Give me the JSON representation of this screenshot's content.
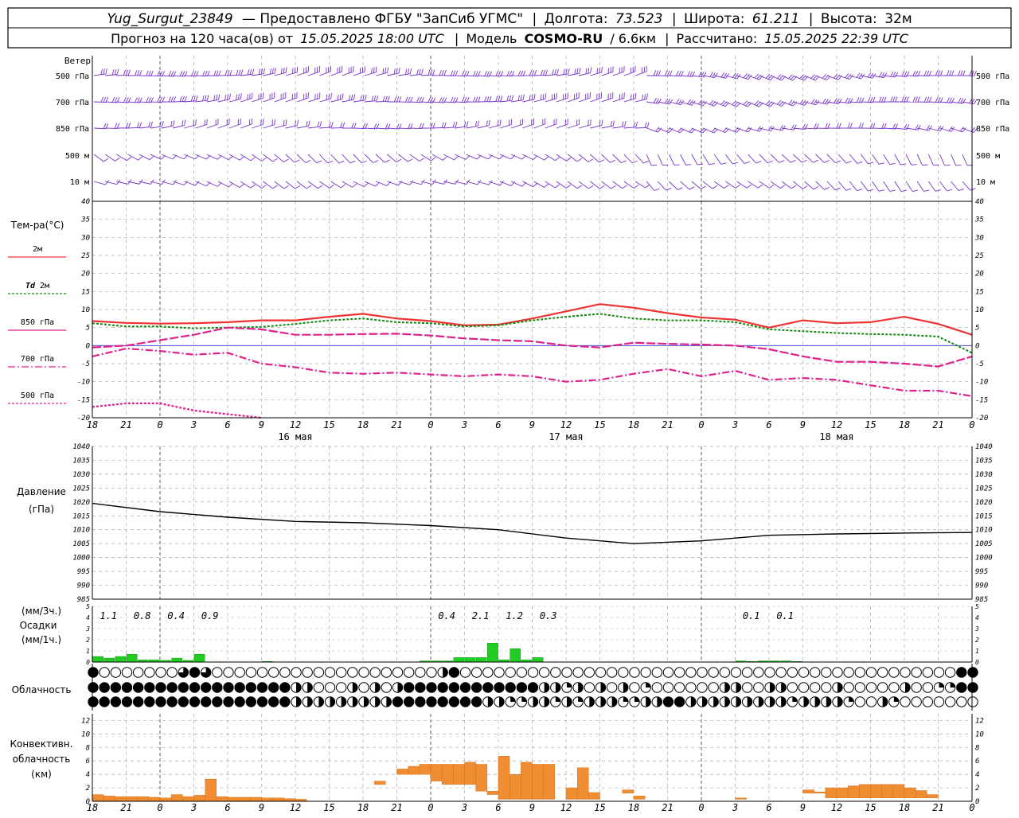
{
  "header": {
    "station": "Yug_Surgut_23849",
    "provider": "— Предоставлено ФГБУ \"ЗапСиб УГМС\"",
    "lon_label": "Долгота:",
    "lon_value": "73.523",
    "lat_label": "Широта:",
    "lat_value": "61.211",
    "alt_label": "Высота:",
    "alt_value": "32м",
    "forecast_label": "Прогноз на 120 часа(ов) от",
    "forecast_start": "15.05.2025 18:00 UTC",
    "model_label": "Модель",
    "model_name": "COSMO-RU",
    "model_res": "/ 6.6км",
    "calc_label": "Рассчитано:",
    "calc_time": "15.05.2025 22:39 UTC"
  },
  "panels": {
    "wind": {
      "title": "Ветер",
      "levels": [
        "500 гПа",
        "700 гПа",
        "850 гПа",
        "500 м",
        "10  м"
      ]
    },
    "temp": {
      "title": "Тем-ра(°C)",
      "legend": [
        "2м",
        "Td  2м",
        "850 гПа",
        "700 гПа",
        "500 гПа"
      ]
    },
    "pressure": {
      "title": "Давление",
      "units": "(гПа)"
    },
    "precip": {
      "units3": "(мм/3ч.)",
      "title": "Осадки",
      "units1": "(мм/1ч.)"
    },
    "clouds": {
      "title": "Облачность"
    },
    "conv": {
      "title1": "Конвективн.",
      "title2": "облачность",
      "units": "(км)"
    }
  },
  "time_axis": {
    "hour_labels": [
      "18",
      "21",
      "0",
      "3",
      "6",
      "9",
      "12",
      "15",
      "18",
      "21",
      "0",
      "3",
      "6",
      "9",
      "12",
      "15",
      "18",
      "21",
      "0",
      "3",
      "6",
      "9",
      "12",
      "15",
      "18",
      "21",
      "0"
    ],
    "day_labels": [
      "16 мая",
      "17 мая",
      "18 мая"
    ]
  },
  "chart_data": [
    {
      "type": "line",
      "title": "Тем-ра(°C)",
      "ylim": [
        -20,
        40
      ],
      "x_hours": [
        0,
        3,
        6,
        9,
        12,
        15,
        18,
        21,
        24,
        27,
        30,
        33,
        36,
        39,
        42,
        45,
        48,
        51,
        54,
        57,
        60,
        63,
        66,
        69,
        72,
        75,
        78
      ],
      "series": [
        {
          "name": "2м",
          "color": "#ee3333",
          "values": [
            6.8,
            6.3,
            6.1,
            6.2,
            6.5,
            7,
            7,
            8,
            8.8,
            7.5,
            6.8,
            5.6,
            5.8,
            7.5,
            9.5,
            11.5,
            10.5,
            9,
            7.8,
            7.2,
            5,
            7,
            6.2,
            6.5,
            8,
            6,
            3
          ]
        },
        {
          "name": "Td  2м",
          "color": "#118811",
          "values": [
            6.2,
            5.3,
            5.3,
            4.8,
            5,
            5.2,
            6,
            7,
            7.5,
            6.5,
            6.2,
            5.3,
            5.6,
            7,
            8,
            8.8,
            7.5,
            7,
            7,
            6.5,
            4.5,
            4,
            3.5,
            3.2,
            3,
            2.5,
            -2
          ]
        },
        {
          "name": "850 гПа",
          "color": "#e0208a",
          "values": [
            -0.5,
            0,
            1.5,
            3,
            5,
            4.5,
            3,
            3,
            3.2,
            3.3,
            2.8,
            2,
            1.5,
            1.2,
            0,
            -0.5,
            0.8,
            0.5,
            0.3,
            0,
            -1,
            -3,
            -4.5,
            -4.5,
            -5,
            -5.8,
            -3
          ]
        },
        {
          "name": "700 гПа",
          "color": "#e0208a",
          "values": [
            -3,
            -0.8,
            -1.5,
            -2.5,
            -2,
            -5,
            -6,
            -7.5,
            -7.8,
            -7.5,
            -8,
            -8.5,
            -8,
            -8.5,
            -10,
            -9.5,
            -7.8,
            -6.5,
            -8.5,
            -7,
            -9.5,
            -9,
            -9.5,
            -11,
            -12.5,
            -12.5,
            -14
          ]
        },
        {
          "name": "500 гПа",
          "color": "#e0208a",
          "values": [
            -17,
            -16,
            -16,
            -18,
            -19,
            -20
          ]
        }
      ]
    },
    {
      "type": "line",
      "title": "Давление",
      "ylim": [
        985,
        1040
      ],
      "x_hours": [
        0,
        6,
        12,
        18,
        24,
        30,
        36,
        42,
        48,
        54,
        60,
        66,
        72,
        78
      ],
      "series": [
        {
          "name": "Давление",
          "values": [
            1019.5,
            1016.5,
            1014.5,
            1013,
            1012.5,
            1011.5,
            1010,
            1007,
            1005,
            1006,
            1008,
            1008.5,
            1008.8,
            1009
          ]
        }
      ]
    },
    {
      "type": "bar",
      "title": "Осадки",
      "ylim": [
        0,
        5
      ],
      "totals_3h": [
        {
          "x": 1,
          "value": "1.1"
        },
        {
          "x": 4,
          "value": "0.8"
        },
        {
          "x": 7,
          "value": "0.4"
        },
        {
          "x": 10,
          "value": "0.9"
        },
        {
          "x": 31,
          "value": "0.4"
        },
        {
          "x": 34,
          "value": "2.1"
        },
        {
          "x": 37,
          "value": "1.2"
        },
        {
          "x": 40,
          "value": "0.3"
        },
        {
          "x": 58,
          "value": "0.1"
        },
        {
          "x": 61,
          "value": "0.1"
        }
      ],
      "hourly": [
        0.5,
        0.35,
        0.5,
        0.7,
        0.2,
        0.2,
        0.15,
        0.35,
        0.15,
        0.7,
        0,
        0,
        0,
        0,
        0,
        0.05,
        0,
        0,
        0,
        0,
        0,
        0,
        0,
        0,
        0,
        0,
        0,
        0,
        0,
        0.1,
        0.1,
        0.1,
        0.4,
        0.4,
        0.4,
        1.7,
        0.2,
        1.2,
        0.2,
        0.4,
        0,
        0,
        0,
        0,
        0,
        0,
        0,
        0,
        0,
        0,
        0,
        0,
        0,
        0,
        0,
        0,
        0,
        0.1,
        0.05,
        0.1,
        0.1,
        0.1,
        0.05,
        0,
        0,
        0,
        0,
        0,
        0,
        0,
        0,
        0,
        0,
        0,
        0,
        0,
        0,
        0,
        0
      ]
    },
    {
      "type": "bar",
      "title": "Конвективн. облачность",
      "ylim": [
        0,
        13
      ],
      "bars": [
        {
          "x": 0,
          "base": 0,
          "top": 1
        },
        {
          "x": 1,
          "base": 0,
          "top": 0.8
        },
        {
          "x": 2,
          "base": 0,
          "top": 0.7
        },
        {
          "x": 3,
          "base": 0,
          "top": 0.7
        },
        {
          "x": 4,
          "base": 0,
          "top": 0.7
        },
        {
          "x": 5,
          "base": 0,
          "top": 0.6
        },
        {
          "x": 6,
          "base": 0,
          "top": 0.5
        },
        {
          "x": 7,
          "base": 0,
          "top": 1
        },
        {
          "x": 8,
          "base": 0,
          "top": 0.7
        },
        {
          "x": 9,
          "base": 0,
          "top": 0.9
        },
        {
          "x": 10,
          "base": 0,
          "top": 3.3
        },
        {
          "x": 11,
          "base": 0,
          "top": 0.7
        },
        {
          "x": 12,
          "base": 0,
          "top": 0.6
        },
        {
          "x": 13,
          "base": 0,
          "top": 0.6
        },
        {
          "x": 14,
          "base": 0,
          "top": 0.6
        },
        {
          "x": 15,
          "base": 0,
          "top": 0.5
        },
        {
          "x": 16,
          "base": 0,
          "top": 0.5
        },
        {
          "x": 17,
          "base": 0,
          "top": 0.4
        },
        {
          "x": 18,
          "base": 0,
          "top": 0.3
        },
        {
          "x": 25,
          "base": 2.5,
          "top": 3
        },
        {
          "x": 27,
          "base": 4,
          "top": 4.8
        },
        {
          "x": 28,
          "base": 4,
          "top": 5.2
        },
        {
          "x": 29,
          "base": 4,
          "top": 5.5
        },
        {
          "x": 30,
          "base": 3,
          "top": 5.5
        },
        {
          "x": 31,
          "base": 2.5,
          "top": 5.5
        },
        {
          "x": 32,
          "base": 2.5,
          "top": 5.5
        },
        {
          "x": 33,
          "base": 2.5,
          "top": 5.8
        },
        {
          "x": 34,
          "base": 1.5,
          "top": 5.5
        },
        {
          "x": 35,
          "base": 1,
          "top": 1.5
        },
        {
          "x": 36,
          "base": 0.3,
          "top": 6.7
        },
        {
          "x": 37,
          "base": 0.3,
          "top": 4
        },
        {
          "x": 38,
          "base": 0.3,
          "top": 5.8
        },
        {
          "x": 39,
          "base": 0.3,
          "top": 5.5
        },
        {
          "x": 40,
          "base": 0.3,
          "top": 5.5
        },
        {
          "x": 42,
          "base": 0.3,
          "top": 2
        },
        {
          "x": 43,
          "base": 0.3,
          "top": 5
        },
        {
          "x": 44,
          "base": 0.3,
          "top": 1.3
        },
        {
          "x": 47,
          "base": 1.2,
          "top": 1.7
        },
        {
          "x": 48,
          "base": 0.3,
          "top": 0.8
        },
        {
          "x": 57,
          "base": 0.3,
          "top": 0.5
        },
        {
          "x": 63,
          "base": 1.2,
          "top": 1.7
        },
        {
          "x": 64,
          "base": 1.2,
          "top": 1.4
        },
        {
          "x": 65,
          "base": 0.5,
          "top": 2
        },
        {
          "x": 66,
          "base": 0.5,
          "top": 2
        },
        {
          "x": 67,
          "base": 0.5,
          "top": 2.3
        },
        {
          "x": 68,
          "base": 0.5,
          "top": 2.5
        },
        {
          "x": 69,
          "base": 0.5,
          "top": 2.5
        },
        {
          "x": 70,
          "base": 0.5,
          "top": 2.5
        },
        {
          "x": 71,
          "base": 0.5,
          "top": 2.5
        },
        {
          "x": 72,
          "base": 0.5,
          "top": 2
        },
        {
          "x": 73,
          "base": 0.5,
          "top": 1.6
        },
        {
          "x": 74,
          "base": 0.5,
          "top": 1
        }
      ]
    },
    {
      "type": "table",
      "title": "Облачность",
      "rows": [
        "FOOOOOOOTFTOOOOOOOOOOOOOOOOOOOOHFOOOOOOOOOOOOOOOOOOOOOOOOOOOOOOOOOOOOOOOOOOOOFF",
        "FFFFFFFFFFFFFFFFFFHHOOOHOHOHFFFFFFFFFFFFHHQHOHOHOQOOOOOOHHOOHHOOOOHOOOOOHOOQQFF",
        "FFFFFFFFFFFFFFFFFFHHHHHHHHHFFFFFFFFHHQQHHQHQHHHQQHHFFHHHHHHHHHQHHHHQOOHQOOOOOOO"
      ]
    }
  ]
}
